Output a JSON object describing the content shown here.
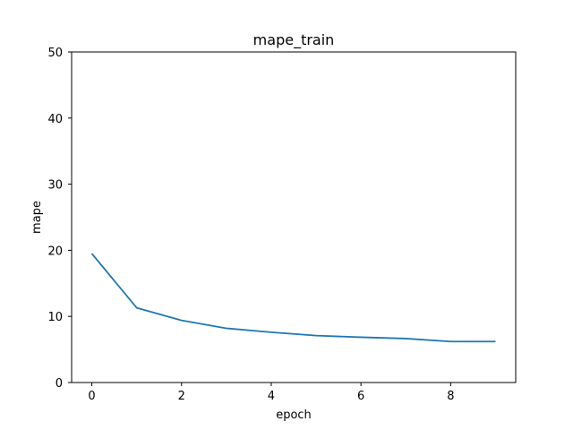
{
  "chart_data": {
    "type": "line",
    "title": "mape_train",
    "xlabel": "epoch",
    "ylabel": "mape",
    "xlim": [
      -0.45,
      9.45
    ],
    "ylim": [
      0,
      50
    ],
    "xticks": [
      0,
      2,
      4,
      6,
      8
    ],
    "yticks": [
      0,
      10,
      20,
      30,
      40,
      50
    ],
    "grid": false,
    "series": [
      {
        "color": "#1f77b4",
        "x": [
          0,
          1,
          2,
          3,
          4,
          5,
          6,
          7,
          8,
          9
        ],
        "y": [
          19.5,
          11.3,
          9.4,
          8.2,
          7.6,
          7.1,
          6.85,
          6.65,
          6.2,
          6.2
        ]
      }
    ]
  }
}
